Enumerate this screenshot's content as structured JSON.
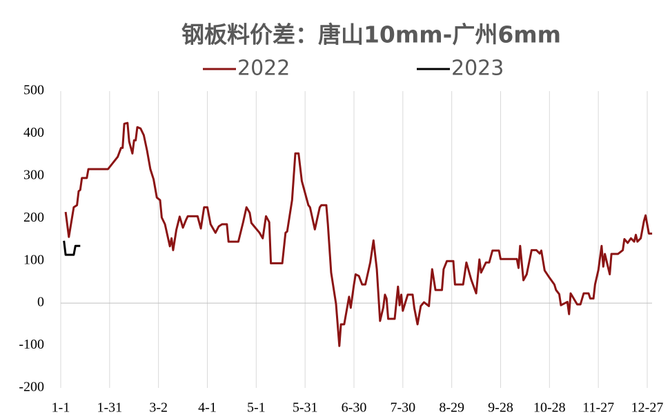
{
  "chart_data": {
    "type": "line",
    "title": "钢板料价差：唐山10mm-广州6mm",
    "xlim": [
      0,
      363
    ],
    "ylim": [
      -200,
      500
    ],
    "xticks": [
      {
        "value": 0,
        "label": "1-1"
      },
      {
        "value": 30,
        "label": "1-31"
      },
      {
        "value": 60,
        "label": "3-2"
      },
      {
        "value": 90,
        "label": "4-1"
      },
      {
        "value": 120,
        "label": "5-1"
      },
      {
        "value": 150,
        "label": "5-31"
      },
      {
        "value": 180,
        "label": "6-30"
      },
      {
        "value": 210,
        "label": "7-30"
      },
      {
        "value": 240,
        "label": "8-29"
      },
      {
        "value": 270,
        "label": "9-28"
      },
      {
        "value": 300,
        "label": "10-28"
      },
      {
        "value": 330,
        "label": "11-27"
      },
      {
        "value": 360,
        "label": "12-27"
      }
    ],
    "yticks": [
      -200,
      -100,
      0,
      100,
      200,
      300,
      400,
      500
    ],
    "grid": true,
    "series": [
      {
        "name": "2022",
        "color": "#8b1414",
        "x": [
          3,
          5,
          8,
          10,
          11,
          12,
          13,
          16,
          17,
          29,
          35,
          37,
          38,
          39,
          41,
          42,
          44,
          45,
          46,
          47,
          49,
          51,
          53,
          55,
          57,
          59,
          61,
          62,
          64,
          67,
          68,
          69,
          71,
          73,
          75,
          77,
          78,
          84,
          86,
          88,
          90,
          92,
          95,
          97,
          99,
          102,
          103,
          109,
          112,
          114,
          116,
          117,
          122,
          124,
          126,
          128,
          129,
          136,
          138,
          139,
          142,
          144,
          146,
          148,
          152,
          153,
          156,
          159,
          160,
          163,
          164,
          166,
          169,
          171,
          172,
          174,
          177,
          178,
          180,
          181,
          183,
          185,
          187,
          190,
          192,
          194,
          196,
          198,
          199,
          200,
          201,
          205,
          207,
          208,
          209,
          210,
          213,
          216,
          217,
          219,
          221,
          223,
          226,
          228,
          230,
          234,
          235,
          237,
          241,
          242,
          247,
          249,
          252,
          255,
          257,
          258,
          261,
          263,
          265,
          269,
          270,
          280,
          281,
          282,
          284,
          286,
          289,
          292,
          294,
          295,
          297,
          300,
          303,
          304,
          306,
          307,
          311,
          312,
          313,
          317,
          319,
          321,
          324,
          325,
          327,
          328,
          330,
          332,
          333,
          334,
          337,
          338,
          342,
          345,
          346,
          348,
          350,
          352,
          353,
          354,
          356,
          358,
          359,
          361,
          363
        ],
        "values": [
          215,
          156,
          226,
          231,
          264,
          267,
          295,
          295,
          316,
          316,
          345,
          366,
          366,
          423,
          425,
          381,
          353,
          384,
          384,
          415,
          412,
          396,
          360,
          316,
          292,
          249,
          243,
          202,
          186,
          134,
          153,
          125,
          173,
          204,
          178,
          197,
          205,
          205,
          176,
          226,
          226,
          186,
          166,
          181,
          186,
          186,
          145,
          145,
          191,
          226,
          213,
          189,
          166,
          153,
          205,
          191,
          94,
          94,
          166,
          169,
          243,
          353,
          353,
          288,
          231,
          226,
          174,
          226,
          231,
          231,
          186,
          72,
          -2,
          -101,
          -50,
          -50,
          15,
          -11,
          44,
          68,
          64,
          44,
          44,
          96,
          148,
          80,
          -42,
          -10,
          20,
          11,
          -37,
          -37,
          39,
          -5,
          20,
          -18,
          20,
          20,
          -11,
          -50,
          -7,
          2,
          -7,
          80,
          31,
          31,
          80,
          99,
          99,
          44,
          44,
          96,
          55,
          23,
          103,
          72,
          96,
          96,
          124,
          124,
          104,
          104,
          83,
          135,
          54,
          68,
          125,
          125,
          117,
          124,
          77,
          60,
          44,
          31,
          21,
          -5,
          3,
          -26,
          23,
          -3,
          -3,
          23,
          23,
          11,
          11,
          44,
          78,
          135,
          86,
          116,
          68,
          116,
          116,
          125,
          151,
          142,
          153,
          145,
          161,
          145,
          153,
          194,
          207,
          164,
          164
        ]
      },
      {
        "name": "2023",
        "color": "#000000",
        "x": [
          2,
          3,
          8,
          9,
          12
        ],
        "values": [
          147,
          114,
          114,
          135,
          135
        ]
      }
    ]
  }
}
